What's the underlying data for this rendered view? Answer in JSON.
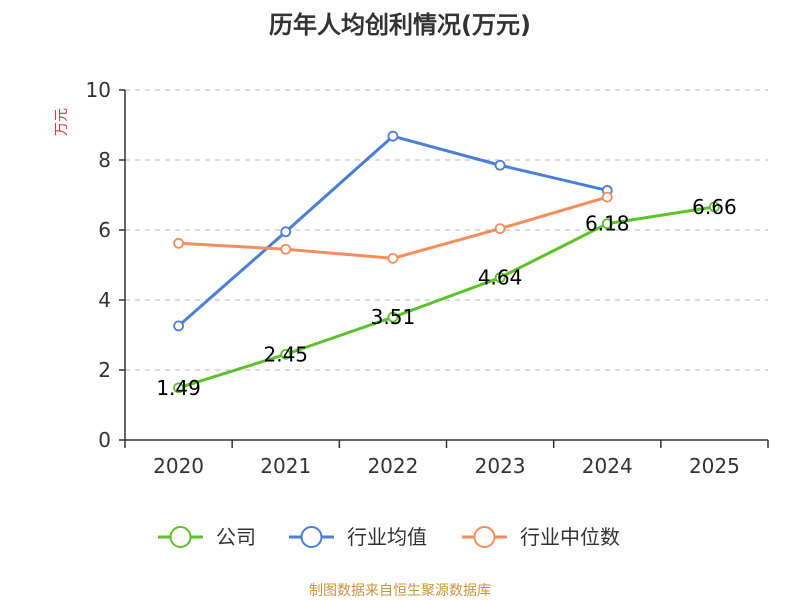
{
  "chart_data": {
    "type": "line",
    "title": "历年人均创利情况(万元)",
    "ylabel": "万元",
    "xlabel": "",
    "categories": [
      "2020",
      "2021",
      "2022",
      "2023",
      "2024",
      "2025"
    ],
    "ylim": [
      0,
      10
    ],
    "yticks": [
      "0",
      "2",
      "4",
      "6",
      "8",
      "10"
    ],
    "grid": "horizontal-dashed",
    "legend_position": "bottom",
    "series": [
      {
        "name": "公司",
        "color": "#5cc12a",
        "values": [
          1.49,
          2.45,
          3.51,
          4.64,
          6.18,
          6.66
        ],
        "labels": [
          "1.49",
          "2.45",
          "3.51",
          "4.64",
          "6.18",
          "6.66"
        ]
      },
      {
        "name": "行业均值",
        "color": "#4b7fd6",
        "values": [
          3.26,
          5.95,
          8.68,
          7.85,
          7.13,
          null
        ]
      },
      {
        "name": "行业中位数",
        "color": "#f58d5c",
        "values": [
          5.62,
          5.45,
          5.19,
          6.04,
          6.94,
          null
        ]
      }
    ]
  },
  "colors": {
    "ylabel": "#e03a3a",
    "source": "#c8963e"
  },
  "footer": {
    "source": "制图数据来自恒生聚源数据库"
  }
}
